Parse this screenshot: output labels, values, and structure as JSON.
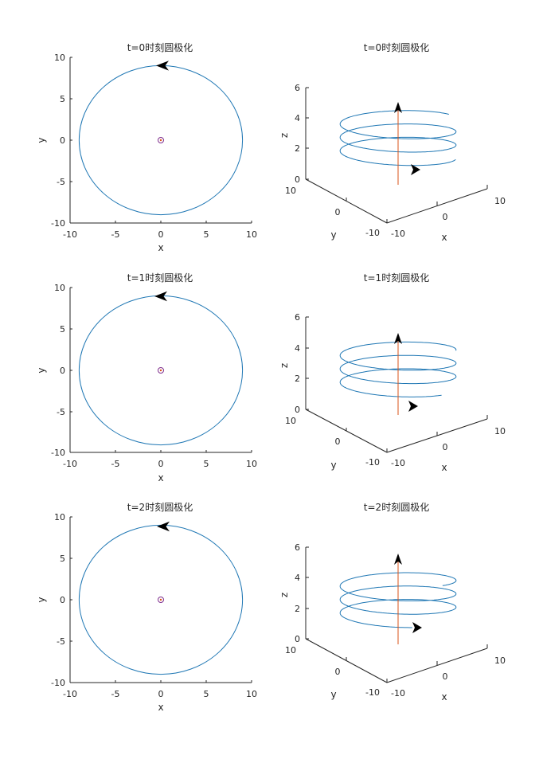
{
  "chart_data": [
    {
      "panel_id": "r1c1",
      "type": "line",
      "title": "t=0时刻圆极化",
      "xlabel": "x",
      "ylabel": "y",
      "xlim": [
        -10,
        10
      ],
      "ylim": [
        -10,
        10
      ],
      "xticks": [
        "-10",
        "-5",
        "0",
        "5",
        "10"
      ],
      "yticks": [
        "-10",
        "-5",
        "0",
        "5",
        "10"
      ],
      "series": [
        {
          "values_desc": "circle",
          "cx": 0,
          "cy": 0,
          "r": 9
        }
      ],
      "arrow": {
        "x": 0,
        "y": 9,
        "direction": "counterclockwise"
      },
      "marker": {
        "x": 0,
        "y": 0
      }
    },
    {
      "panel_id": "r1c2",
      "type": "line",
      "title": "t=0时刻圆极化",
      "xlabel": "x",
      "ylabel": "y",
      "zlabel": "z",
      "xlim": [
        -10,
        10
      ],
      "ylim": [
        -10,
        10
      ],
      "zlim": [
        0,
        6
      ],
      "xticks": [
        "-10",
        "0",
        "10"
      ],
      "yticks": [
        "-10",
        "0",
        "10"
      ],
      "zticks": [
        "0",
        "2",
        "4",
        "6"
      ],
      "helix": {
        "radius": 9,
        "z_start": 0,
        "z_end": 4,
        "turns": 2.9,
        "phase": 0
      },
      "arrow": {
        "z": 0,
        "position": "front"
      },
      "z_vector": {
        "z_top": 5
      }
    },
    {
      "panel_id": "r2c1",
      "type": "line",
      "title": "t=1时刻圆极化",
      "xlabel": "x",
      "ylabel": "y",
      "xlim": [
        -10,
        10
      ],
      "ylim": [
        -10,
        10
      ],
      "xticks": [
        "-10",
        "-5",
        "0",
        "5",
        "10"
      ],
      "yticks": [
        "-10",
        "-5",
        "0",
        "5",
        "10"
      ],
      "series": [
        {
          "values_desc": "circle",
          "cx": 0,
          "cy": 0,
          "r": 9
        }
      ],
      "arrow": {
        "x": 0,
        "y": 9,
        "direction": "counterclockwise"
      },
      "marker": {
        "x": 0,
        "y": 0
      }
    },
    {
      "panel_id": "r2c2",
      "type": "line",
      "title": "t=1时刻圆极化",
      "xlabel": "x",
      "ylabel": "y",
      "zlabel": "z",
      "xlim": [
        -10,
        10
      ],
      "ylim": [
        -10,
        10
      ],
      "zlim": [
        0,
        6
      ],
      "xticks": [
        "-10",
        "0",
        "10"
      ],
      "yticks": [
        "-10",
        "0",
        "10"
      ],
      "zticks": [
        "0",
        "2",
        "4",
        "6"
      ],
      "helix": {
        "radius": 9,
        "z_start": 0,
        "z_end": 4,
        "turns": 2.9,
        "phase": 1
      },
      "arrow": {
        "z": 0,
        "position": "front"
      },
      "z_vector": {
        "z_top": 5
      }
    },
    {
      "panel_id": "r3c1",
      "type": "line",
      "title": "t=2时刻圆极化",
      "xlabel": "x",
      "ylabel": "y",
      "xlim": [
        -10,
        10
      ],
      "ylim": [
        -10,
        10
      ],
      "xticks": [
        "-10",
        "-5",
        "0",
        "5",
        "10"
      ],
      "yticks": [
        "-10",
        "-5",
        "0",
        "5",
        "10"
      ],
      "series": [
        {
          "values_desc": "circle",
          "cx": 0,
          "cy": 0,
          "r": 9
        }
      ],
      "arrow": {
        "x": 0,
        "y": 9,
        "direction": "counterclockwise"
      },
      "marker": {
        "x": 0,
        "y": 0
      }
    },
    {
      "panel_id": "r3c2",
      "type": "line",
      "title": "t=2时刻圆极化",
      "xlabel": "x",
      "ylabel": "y",
      "zlabel": "z",
      "xlim": [
        -10,
        10
      ],
      "ylim": [
        -10,
        10
      ],
      "zlim": [
        0,
        6
      ],
      "xticks": [
        "-10",
        "0",
        "10"
      ],
      "yticks": [
        "-10",
        "0",
        "10"
      ],
      "zticks": [
        "0",
        "2",
        "4",
        "6"
      ],
      "helix": {
        "radius": 9,
        "z_start": 0,
        "z_end": 4,
        "turns": 2.9,
        "phase": 2
      },
      "arrow": {
        "z": 0,
        "position": "front"
      },
      "z_vector": {
        "z_top": 5
      }
    }
  ],
  "colors": {
    "curve": "#1f77b4",
    "axis": "#262626",
    "z_vector": "#d95319",
    "marker_outer": "#7e2f8e",
    "marker_inner": "#d95319",
    "arrow": "#000000"
  }
}
